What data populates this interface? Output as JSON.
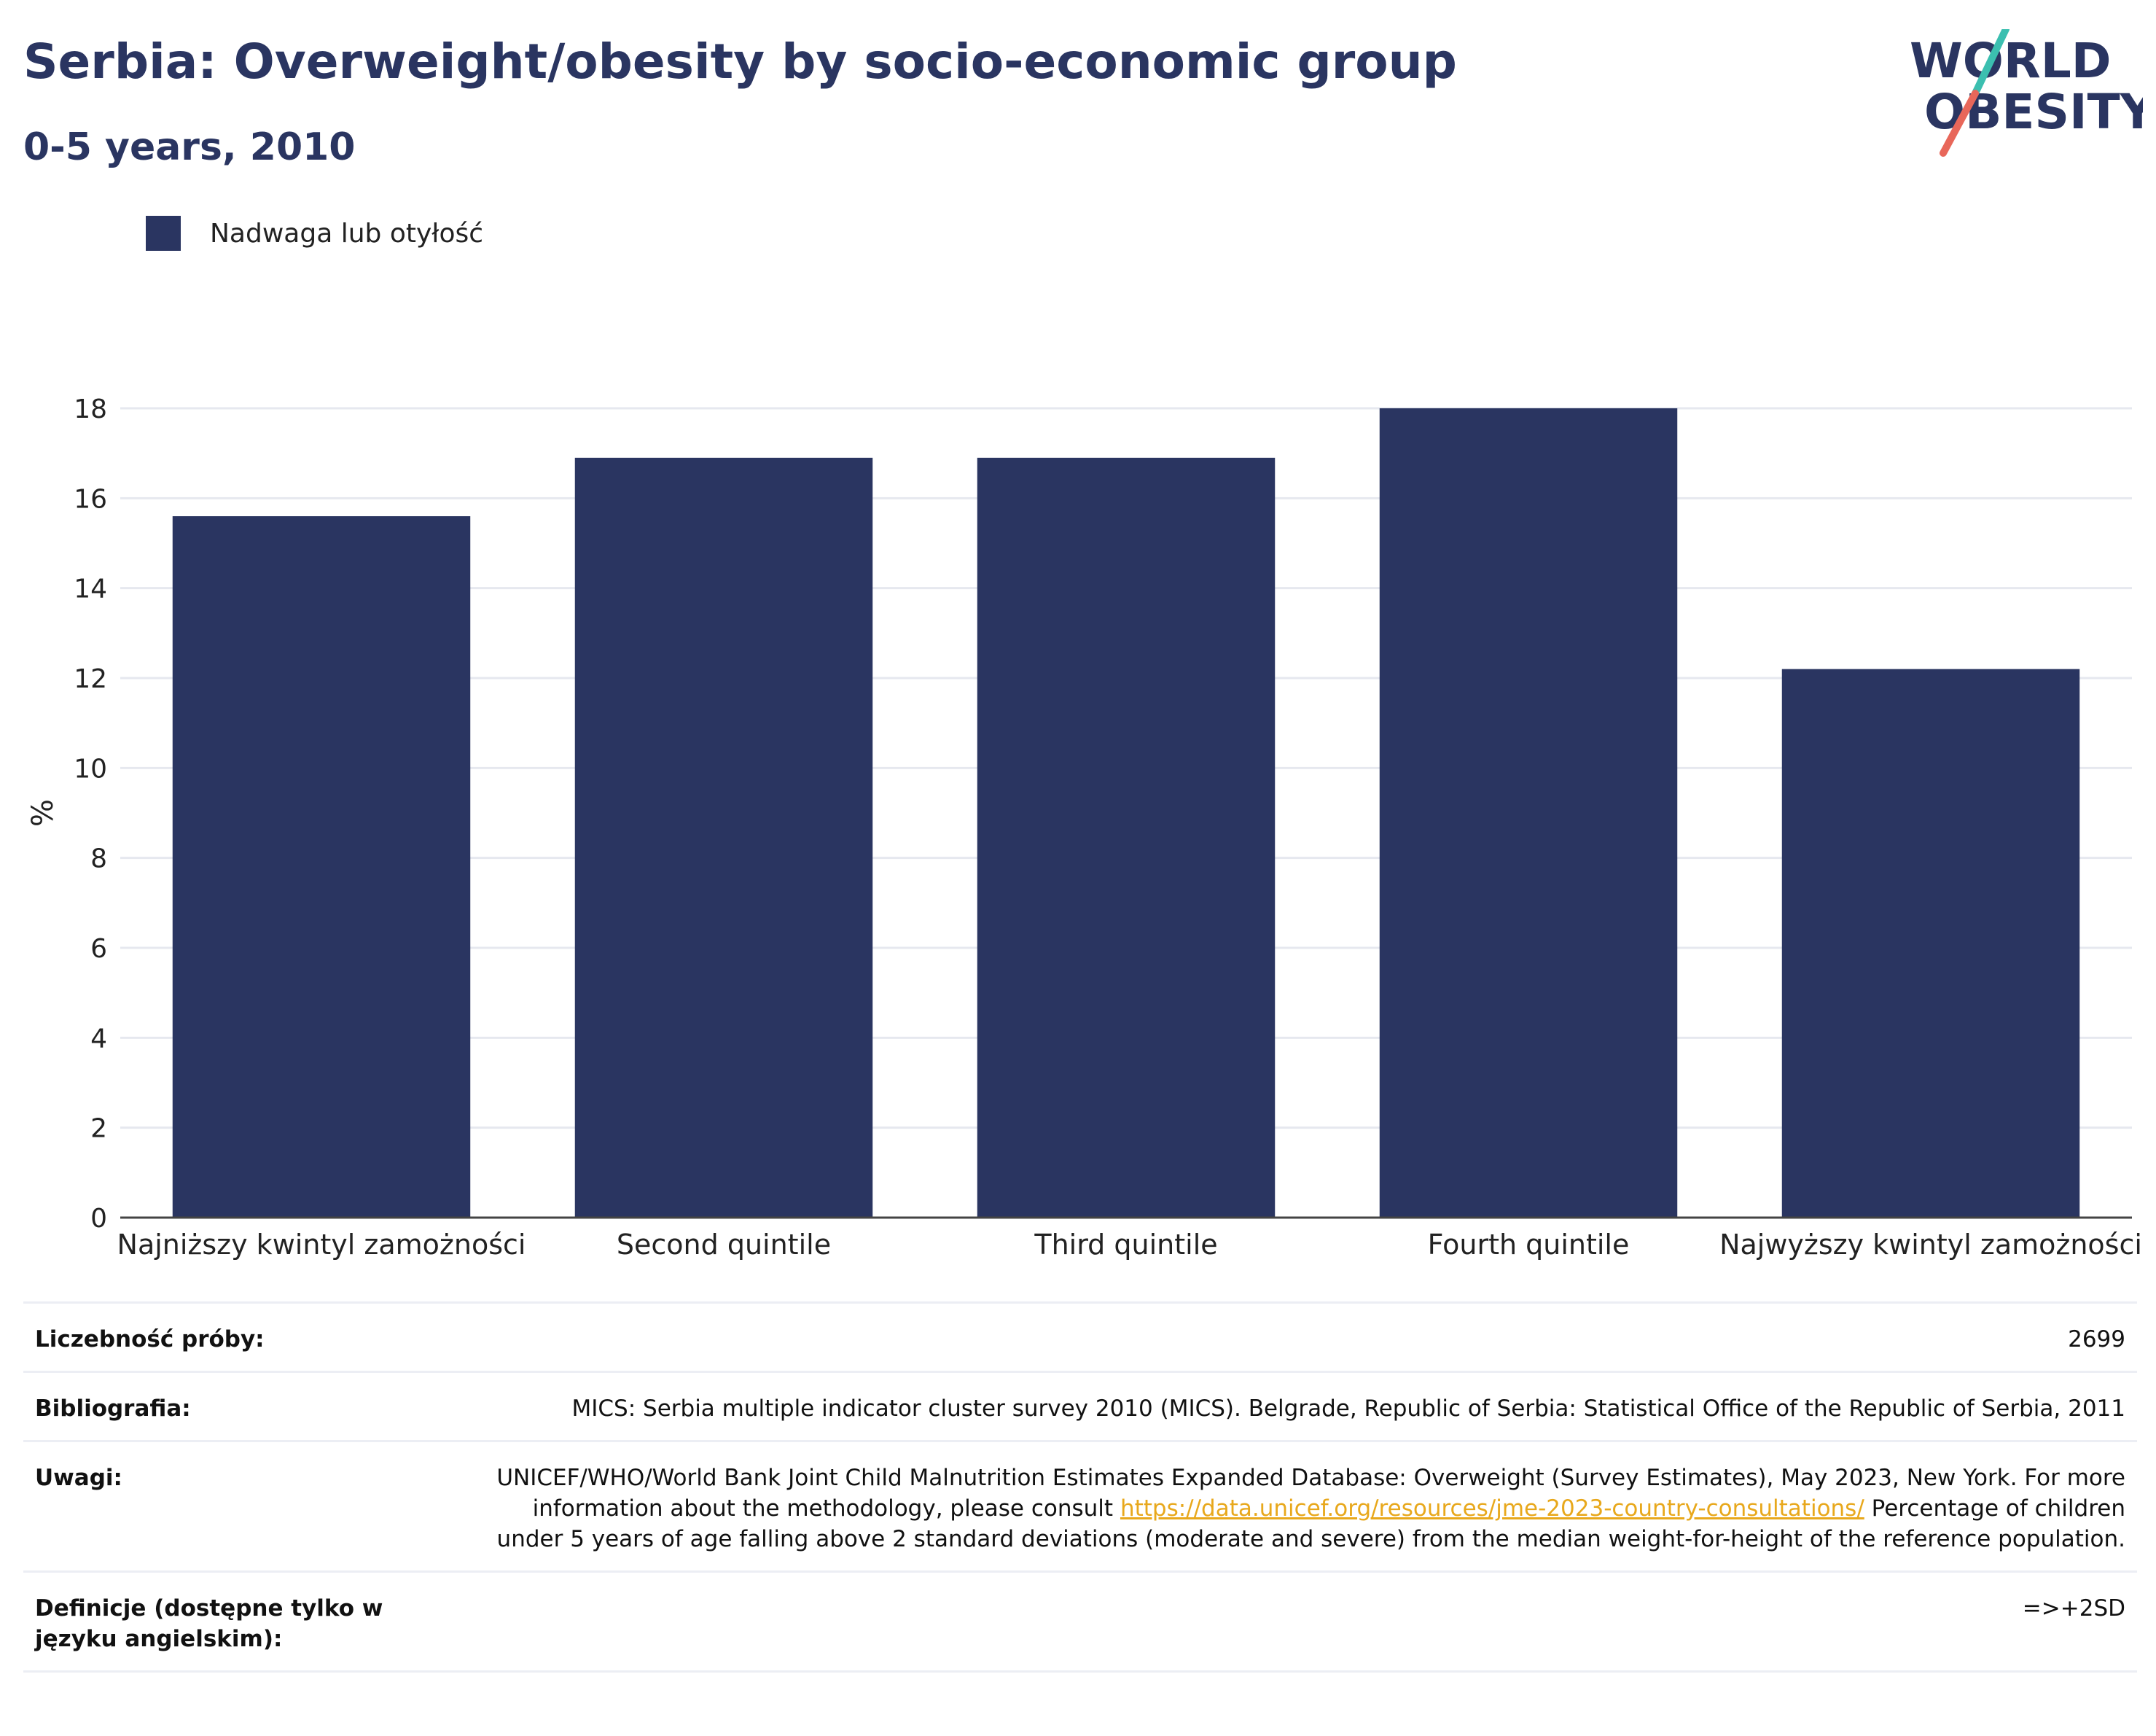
{
  "header": {
    "title": "Serbia: Overweight/obesity by socio-economic group",
    "subtitle": "0-5 years, 2010"
  },
  "logo": {
    "line1": "WORLD",
    "line2": "OBESITY"
  },
  "colors": {
    "bar": "#2a3561",
    "title": "#2a3561",
    "grid": "#e6e8ef",
    "axis": "#444444",
    "link": "#e8a81c",
    "logo_teal": "#3bbfb0",
    "logo_coral": "#e8675a"
  },
  "chart_data": {
    "type": "bar",
    "categories": [
      "Najniższy kwintyl zamożności",
      "Second quintile",
      "Third quintile",
      "Fourth quintile",
      "Najwyższy kwintyl zamożności"
    ],
    "series": [
      {
        "name": "Nadwaga lub otyłość",
        "values": [
          15.6,
          16.9,
          16.9,
          18.0,
          12.2
        ]
      }
    ],
    "ylabel": "%",
    "ylim": [
      0,
      18
    ],
    "yticks": [
      0,
      2,
      4,
      6,
      8,
      10,
      12,
      14,
      16,
      18
    ],
    "grid": true,
    "legend": "top-left"
  },
  "info": {
    "sample_label": "Liczebność próby:",
    "sample_value": "2699",
    "biblio_label": "Bibliografia:",
    "biblio_value": "MICS: Serbia multiple indicator cluster survey 2010 (MICS). Belgrade, Republic of Serbia: Statistical Office of the Republic of Serbia, 2011",
    "notes_label": "Uwagi:",
    "notes_text1": "UNICEF/WHO/World Bank Joint Child Malnutrition Estimates Expanded Database: Overweight (Survey Estimates), May 2023, New York. For more information about the methodology, please consult ",
    "notes_link": "https://data.unicef.org/resources/jme-2023-country-consultations/",
    "notes_text2": " Percentage of children under 5 years of age falling above 2 standard deviations (moderate and severe) from the median weight-for-height of the reference population.",
    "def_label": "Definicje (dostępne tylko w języku angielskim):",
    "def_value": "=>+2SD"
  }
}
